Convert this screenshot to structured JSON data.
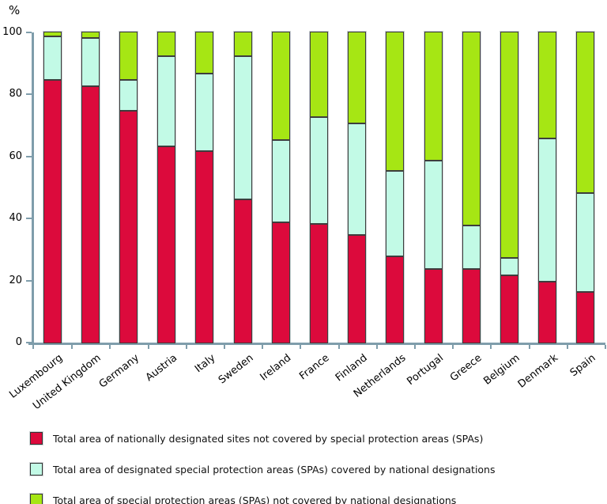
{
  "chart_data": {
    "type": "bar",
    "stacked": true,
    "unit_label": "%",
    "ylabel": "%",
    "ylim": [
      0,
      100
    ],
    "yticks": [
      0,
      20,
      40,
      60,
      80,
      100
    ],
    "grid": false,
    "legend_position": "bottom",
    "axis_color": "#7f9dab",
    "bar_border_color": "#3d3d3d",
    "categories": [
      "Luxembourg",
      "United Kingdom",
      "Germany",
      "Austria",
      "Italy",
      "Sweden",
      "Ireland",
      "France",
      "Finland",
      "Netherlands",
      "Portugal",
      "Greece",
      "Belgium",
      "Denmark",
      "Spain"
    ],
    "series": [
      {
        "name": "Total area of nationally designated sites not covered by special protection areas (SPAs)",
        "color": "#dc0a3c",
        "values": [
          85,
          83,
          75,
          63.5,
          62,
          46.5,
          39,
          38.5,
          35,
          28,
          24,
          24,
          22,
          20,
          16.5
        ]
      },
      {
        "name": "Total area of designated special protection areas (SPAs) covered by national designations",
        "color": "#c2fae6",
        "values": [
          14,
          15.5,
          10,
          29,
          25,
          46,
          26.5,
          34.5,
          36,
          27.5,
          35,
          14,
          5.5,
          46,
          32
        ]
      },
      {
        "name": "Total area of special protection areas (SPAs) not covered by national designations",
        "color": "#a6e614",
        "values": [
          1,
          1.5,
          15,
          7.5,
          13,
          7.5,
          34.5,
          27,
          29,
          44.5,
          41,
          62,
          72.5,
          34,
          51.5
        ]
      }
    ]
  }
}
